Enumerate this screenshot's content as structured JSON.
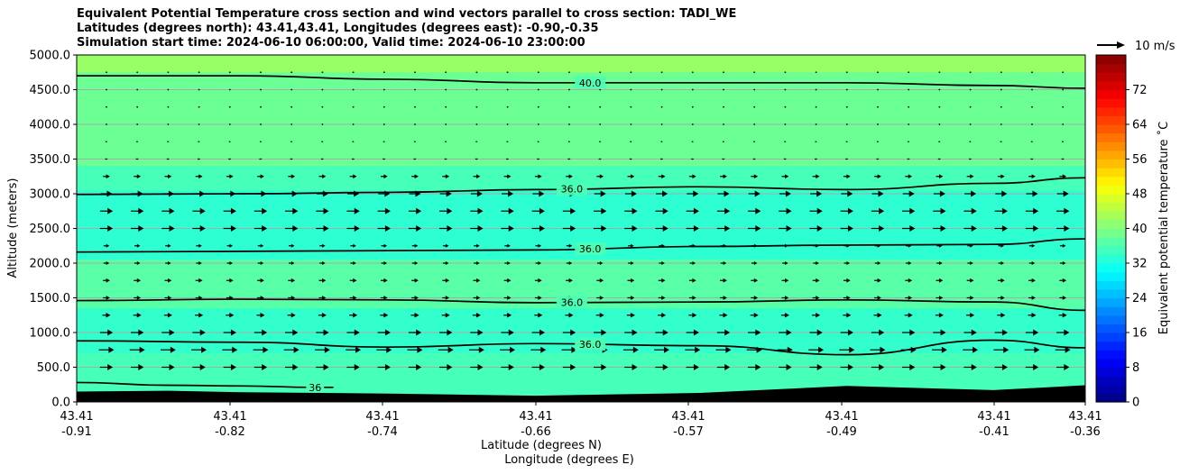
{
  "title_lines": [
    "Equivalent Potential Temperature cross section and wind vectors parallel to cross section: TADI_WE",
    "Latitudes (degrees north): 43.41,43.41, Longitudes (degrees east): -0.90,-0.35",
    "Simulation start time: 2024-06-10 06:00:00, Valid time: 2024-06-10 23:00:00"
  ],
  "chart_data": {
    "type": "heatmap",
    "ylabel": "Altitude (meters)",
    "xlabel_line1": "Latitude (degrees N)",
    "xlabel_line2": "Longitude (degrees E)",
    "ylim": [
      0,
      5000
    ],
    "y_ticks": [
      0,
      500,
      1000,
      1500,
      2000,
      2500,
      3000,
      3500,
      4000,
      4500,
      5000
    ],
    "y_tick_labels": [
      "0.0",
      "500.0",
      "1000.0",
      "1500.0",
      "2000.0",
      "2500.0",
      "3000.0",
      "3500.0",
      "4000.0",
      "4500.0",
      "5000.0"
    ],
    "x_ticks": [
      {
        "lat": "43.41",
        "lon": "-0.91"
      },
      {
        "lat": "43.41",
        "lon": "-0.82"
      },
      {
        "lat": "43.41",
        "lon": "-0.74"
      },
      {
        "lat": "43.41",
        "lon": "-0.66"
      },
      {
        "lat": "43.41",
        "lon": "-0.57"
      },
      {
        "lat": "43.41",
        "lon": "-0.49"
      },
      {
        "lat": "43.41",
        "lon": "-0.41"
      },
      {
        "lat": "43.41",
        "lon": "-0.36"
      }
    ],
    "grid": true,
    "quiver_key_label": "10 m/s",
    "colorbar": {
      "label": "Equivalent potential temperature ˚C",
      "range": [
        0,
        80
      ],
      "ticks": [
        "0",
        "8",
        "16",
        "24",
        "32",
        "40",
        "48",
        "56",
        "64",
        "72"
      ],
      "colormap": "jet"
    },
    "field_bands": [
      {
        "from": 0,
        "to": 700,
        "value": 35.5
      },
      {
        "from": 700,
        "to": 1350,
        "value": 34.0
      },
      {
        "from": 1350,
        "to": 2050,
        "value": 37.0
      },
      {
        "from": 2050,
        "to": 3050,
        "value": 33.5
      },
      {
        "from": 3050,
        "to": 3400,
        "value": 35.5
      },
      {
        "from": 3400,
        "to": 4750,
        "value": 38.5
      },
      {
        "from": 4750,
        "to": 5000,
        "value": 42.0
      }
    ],
    "contours": [
      {
        "label": "40.0",
        "lon": [
          -0.91,
          -0.82,
          -0.74,
          -0.66,
          -0.57,
          -0.49,
          -0.41,
          -0.36
        ],
        "alt": [
          4700,
          4700,
          4650,
          4600,
          4600,
          4600,
          4560,
          4520
        ]
      },
      {
        "label": "36.0",
        "lon": [
          -0.91,
          -0.82,
          -0.74,
          -0.66,
          -0.57,
          -0.49,
          -0.41,
          -0.36
        ],
        "alt": [
          2990,
          3000,
          3020,
          3060,
          3100,
          3060,
          3150,
          3230
        ]
      },
      {
        "label": "36.0",
        "lon": [
          -0.91,
          -0.82,
          -0.74,
          -0.66,
          -0.57,
          -0.49,
          -0.41,
          -0.36
        ],
        "alt": [
          2160,
          2170,
          2180,
          2190,
          2240,
          2260,
          2270,
          2350
        ]
      },
      {
        "label": "36.0",
        "lon": [
          -0.91,
          -0.82,
          -0.74,
          -0.66,
          -0.57,
          -0.49,
          -0.41,
          -0.36
        ],
        "alt": [
          1460,
          1480,
          1470,
          1430,
          1440,
          1470,
          1440,
          1320
        ]
      },
      {
        "label": "36.0",
        "lon": [
          -0.91,
          -0.82,
          -0.74,
          -0.66,
          -0.57,
          -0.49,
          -0.41,
          -0.36
        ],
        "alt": [
          880,
          860,
          790,
          840,
          810,
          680,
          890,
          780
        ]
      },
      {
        "label": "36",
        "lon": [
          -0.91,
          -0.86,
          -0.82,
          -0.78,
          -0.77
        ],
        "alt": [
          280,
          240,
          230,
          210,
          210
        ]
      }
    ],
    "terrain": {
      "lon": [
        -0.91,
        -0.86,
        -0.82,
        -0.74,
        -0.66,
        -0.57,
        -0.49,
        -0.41,
        -0.36
      ],
      "alt": [
        150,
        160,
        140,
        120,
        90,
        130,
        230,
        170,
        240
      ]
    },
    "wind_levels": [
      {
        "alt": 500,
        "u": 5.5
      },
      {
        "alt": 750,
        "u": 6.5
      },
      {
        "alt": 1000,
        "u": 5.5
      },
      {
        "alt": 1250,
        "u": 3.5
      },
      {
        "alt": 1500,
        "u": 3.0
      },
      {
        "alt": 1750,
        "u": 3.0
      },
      {
        "alt": 2000,
        "u": 2.5
      },
      {
        "alt": 2250,
        "u": 2.5
      },
      {
        "alt": 2500,
        "u": 5.5
      },
      {
        "alt": 2750,
        "u": 5.5
      },
      {
        "alt": 3000,
        "u": 5.0
      },
      {
        "alt": 3250,
        "u": 3.0
      },
      {
        "alt": 3500,
        "u": 1.2
      },
      {
        "alt": 3750,
        "u": 0.8
      },
      {
        "alt": 4000,
        "u": 0.6
      },
      {
        "alt": 4250,
        "u": 0.5
      },
      {
        "alt": 4500,
        "u": 0.4
      },
      {
        "alt": 4750,
        "u": 0.4
      }
    ]
  }
}
